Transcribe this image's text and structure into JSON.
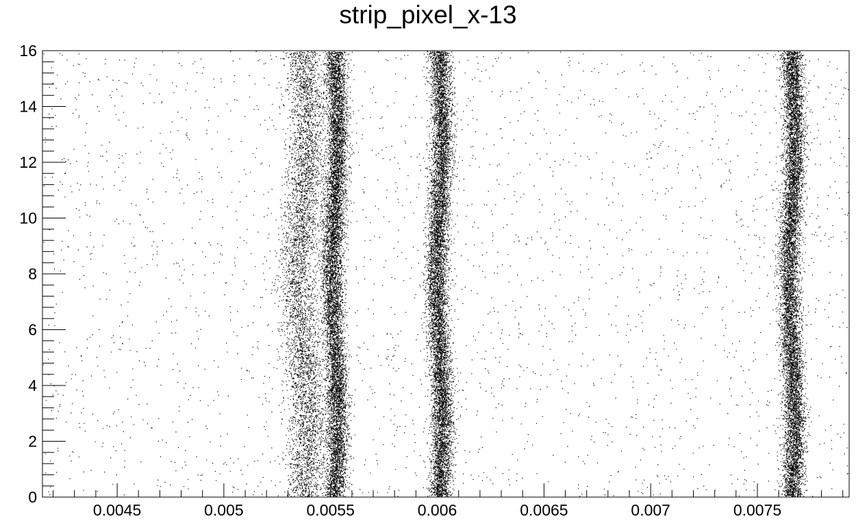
{
  "chart_data": {
    "type": "scatter",
    "title": "strip_pixel_x-13",
    "xlabel": "",
    "ylabel": "",
    "xlim": [
      0.00415,
      0.00793
    ],
    "ylim": [
      0,
      16
    ],
    "x_ticks": [
      {
        "value": 0.0045,
        "label": "0.0045"
      },
      {
        "value": 0.005,
        "label": "0.005"
      },
      {
        "value": 0.0055,
        "label": "0.0055"
      },
      {
        "value": 0.006,
        "label": "0.006"
      },
      {
        "value": 0.0065,
        "label": "0.0065"
      },
      {
        "value": 0.007,
        "label": "0.007"
      },
      {
        "value": 0.0075,
        "label": "0.0075"
      }
    ],
    "y_ticks": [
      {
        "value": 0,
        "label": "0"
      },
      {
        "value": 2,
        "label": "2"
      },
      {
        "value": 4,
        "label": "4"
      },
      {
        "value": 6,
        "label": "6"
      },
      {
        "value": 8,
        "label": "8"
      },
      {
        "value": 10,
        "label": "10"
      },
      {
        "value": 12,
        "label": "12"
      },
      {
        "value": 14,
        "label": "14"
      },
      {
        "value": 16,
        "label": "16"
      }
    ],
    "grid": false,
    "legend": "none",
    "marker_color": "#000000",
    "bands": [
      {
        "x_center": 0.00537,
        "x_width": 9e-05,
        "y_range": [
          0,
          16
        ],
        "density": "medium"
      },
      {
        "x_center": 0.00552,
        "x_width": 5e-05,
        "y_range": [
          0,
          16
        ],
        "density": "high"
      },
      {
        "x_center": 0.00601,
        "x_width": 5e-05,
        "y_range": [
          0,
          16
        ],
        "density": "high"
      },
      {
        "x_center": 0.00766,
        "x_width": 5e-05,
        "y_range": [
          0,
          16
        ],
        "density": "high"
      }
    ],
    "background": {
      "x_range": [
        0.00415,
        0.00793
      ],
      "y_range": [
        0,
        16
      ],
      "density": "low"
    }
  }
}
